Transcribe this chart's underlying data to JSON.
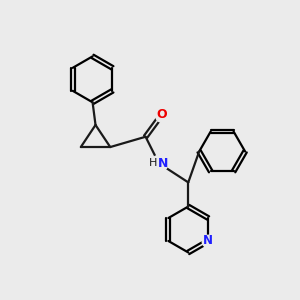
{
  "background_color": "#ebebeb",
  "bond_color": "#1a1a1a",
  "nitrogen_color": "#2020ff",
  "oxygen_color": "#ee0000",
  "line_width": 1.6,
  "figsize": [
    3.0,
    3.0
  ],
  "dpi": 100,
  "xlim": [
    0,
    10
  ],
  "ylim": [
    0,
    10
  ]
}
